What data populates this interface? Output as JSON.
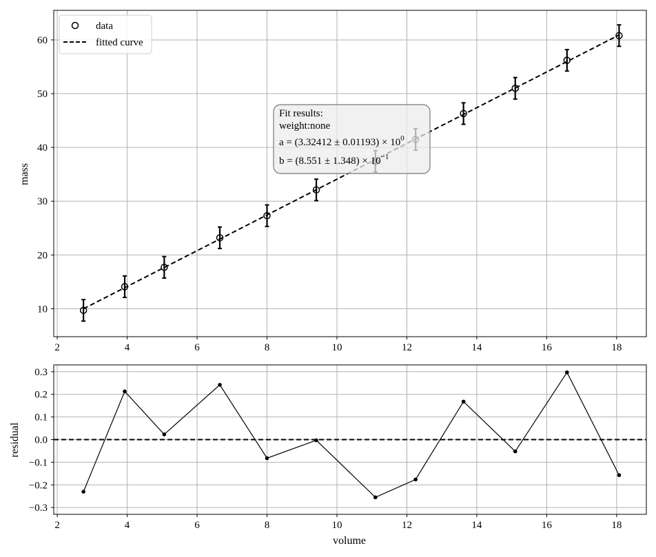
{
  "chart_data": [
    {
      "type": "scatter",
      "panel": "main",
      "xlabel": "",
      "ylabel": "mass",
      "xlim": [
        1.9,
        18.85
      ],
      "ylim": [
        4.8,
        65.5
      ],
      "xticks": [
        2,
        4,
        6,
        8,
        10,
        12,
        14,
        16,
        18
      ],
      "yticks": [
        10,
        20,
        30,
        40,
        50,
        60
      ],
      "grid": true,
      "legend": {
        "placement": "top-left",
        "entries": [
          "data",
          "fitted curve"
        ]
      },
      "series": [
        {
          "name": "data",
          "style": "open-circle-with-errorbars",
          "x": [
            2.75,
            3.93,
            5.06,
            6.65,
            8.0,
            9.41,
            11.1,
            12.25,
            13.62,
            15.1,
            16.58,
            18.07
          ],
          "y": [
            9.7,
            14.1,
            17.7,
            23.2,
            27.3,
            32.1,
            37.4,
            41.5,
            46.3,
            51.0,
            56.2,
            60.8
          ],
          "yerr": [
            2.0,
            2.0,
            2.0,
            2.0,
            2.0,
            2.0,
            2.0,
            2.0,
            2.0,
            2.0,
            2.0,
            2.0
          ]
        },
        {
          "name": "fitted curve",
          "style": "dashed-line",
          "x": [
            2.75,
            18.07
          ],
          "y": [
            9.99,
            60.92
          ]
        }
      ],
      "annotation": {
        "title": "Fit results:",
        "weight_line": "weight:none",
        "a_prefix": "a = (3.32412 ± 0.01193) × 10",
        "a_exp": "0",
        "b_prefix": "b = (8.551 ± 1.348) × 10",
        "b_exp": "−1"
      }
    },
    {
      "type": "line",
      "panel": "residual",
      "xlabel": "volume",
      "ylabel": "residual",
      "xlim": [
        1.9,
        18.85
      ],
      "ylim": [
        -0.33,
        0.33
      ],
      "xticks": [
        2,
        4,
        6,
        8,
        10,
        12,
        14,
        16,
        18
      ],
      "yticks": [
        -0.3,
        -0.2,
        -0.1,
        0.0,
        0.1,
        0.2,
        0.3
      ],
      "ytick_labels": [
        "−0.3",
        "−0.2",
        "−0.1",
        "0.0",
        "0.1",
        "0.2",
        "0.3"
      ],
      "grid": true,
      "zero_line": 0.0,
      "x": [
        2.75,
        3.93,
        5.06,
        6.65,
        8.0,
        9.41,
        11.1,
        12.25,
        13.62,
        15.1,
        16.58,
        18.07
      ],
      "y": [
        -0.23,
        0.213,
        0.023,
        0.242,
        -0.082,
        -0.003,
        -0.255,
        -0.176,
        0.168,
        -0.052,
        0.297,
        -0.157
      ]
    }
  ]
}
